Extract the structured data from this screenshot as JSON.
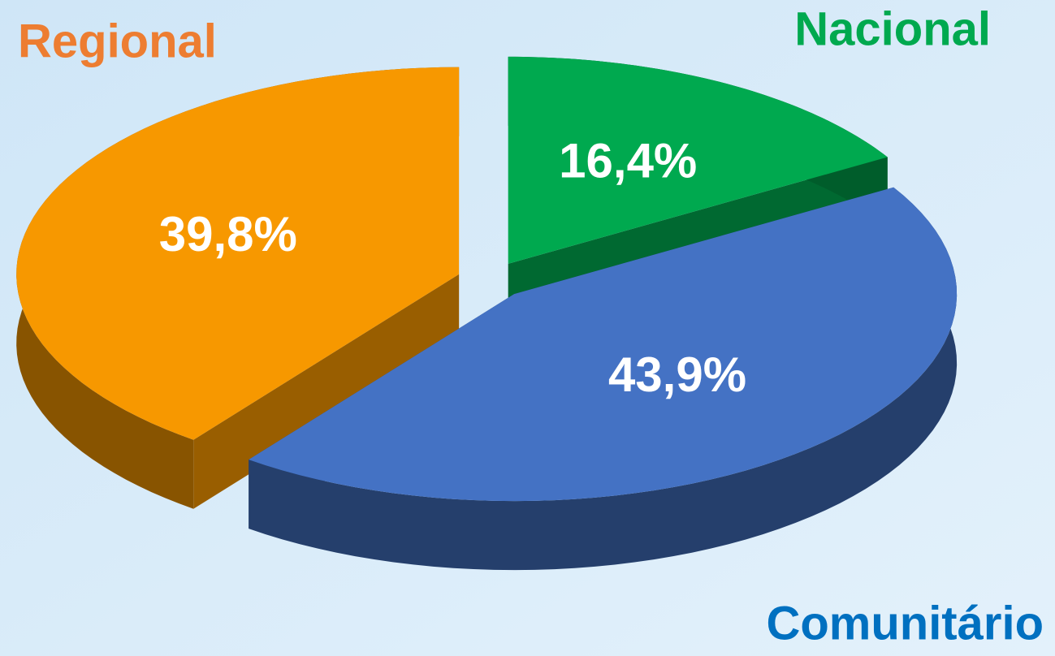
{
  "chart_data": {
    "type": "pie3d",
    "categories": [
      "Nacional",
      "Comunitário",
      "Regional"
    ],
    "values": [
      16.4,
      43.9,
      39.8
    ],
    "value_labels": [
      "16,4%",
      "43,9%",
      "39,8%"
    ],
    "colors": [
      "#00a94f",
      "#4472c4",
      "#f79800"
    ],
    "label_colors": [
      "#00a94f",
      "#0070c0",
      "#ed7d31"
    ]
  }
}
